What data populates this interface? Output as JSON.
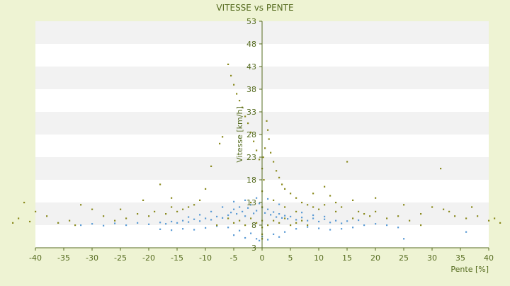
{
  "chart_data": {
    "type": "scatter",
    "title": "VITESSE vs PENTE",
    "xlabel": "Pente [%]",
    "ylabel": "Vitesse [km/h]",
    "xlim": [
      -40,
      40
    ],
    "ylim": [
      3,
      53
    ],
    "x_ticks": [
      -40,
      -35,
      -30,
      -25,
      -20,
      -15,
      -10,
      -5,
      0,
      5,
      10,
      15,
      20,
      25,
      30,
      35,
      40
    ],
    "x_tick_labels": [
      "-40",
      "-35",
      "-30",
      "-25",
      "-20",
      "-15",
      "-10",
      "-5",
      "0",
      "5",
      "10",
      "15",
      "20",
      "25",
      "30",
      "35",
      "40"
    ],
    "y_ticks": [
      3,
      8,
      13,
      18,
      23,
      28,
      33,
      38,
      43,
      48,
      53
    ],
    "y_tick_labels": [
      "3",
      "8",
      "13",
      "18",
      "23",
      "28",
      "33",
      "38",
      "43",
      "48",
      "53"
    ],
    "grid": "horizontal alternating bands",
    "legend": "none",
    "colors": {
      "background": "#eef3d3",
      "band_light": "#ffffff",
      "band_shade": "#f2f2f2",
      "axis": "#556b1f",
      "text": "#556b1f",
      "series_a": "#5b9bd5",
      "series_b": "#8a8a1e"
    },
    "series": [
      {
        "color": "#5b9bd5",
        "points": [
          [
            -6,
            10.2
          ],
          [
            -5.5,
            10.8
          ],
          [
            -5,
            11.5
          ],
          [
            -4.5,
            10.5
          ],
          [
            -4,
            12.0
          ],
          [
            -3.5,
            11.0
          ],
          [
            -3,
            10.0
          ],
          [
            -2.5,
            11.8
          ],
          [
            -2,
            12.5
          ],
          [
            -1.5,
            10.6
          ],
          [
            -1,
            11.2
          ],
          [
            -0.5,
            12.8
          ],
          [
            0,
            11.9
          ],
          [
            0.5,
            10.7
          ],
          [
            1,
            11.5
          ],
          [
            1.5,
            10.3
          ],
          [
            2,
            10.9
          ],
          [
            2.5,
            9.8
          ],
          [
            3,
            10.5
          ],
          [
            3.5,
            9.6
          ],
          [
            4,
            10.1
          ],
          [
            4.5,
            9.4
          ],
          [
            5,
            9.9
          ],
          [
            6,
            9.2
          ],
          [
            7,
            9.7
          ],
          [
            8,
            9.0
          ],
          [
            9,
            9.5
          ],
          [
            10,
            8.8
          ],
          [
            11,
            9.3
          ],
          [
            12,
            8.6
          ],
          [
            13,
            9.0
          ],
          [
            14,
            8.4
          ],
          [
            -7,
            9.6
          ],
          [
            -8,
            9.9
          ],
          [
            -9,
            9.2
          ],
          [
            -10,
            9.5
          ],
          [
            -11,
            8.9
          ],
          [
            -12,
            9.3
          ],
          [
            -13,
            8.7
          ],
          [
            -14,
            9.0
          ],
          [
            -15,
            8.5
          ],
          [
            -16,
            8.8
          ],
          [
            -17,
            8.3
          ],
          [
            -18,
            8.6
          ],
          [
            -20,
            8.2
          ],
          [
            -22,
            8.5
          ],
          [
            -24,
            8.0
          ],
          [
            -26,
            8.4
          ],
          [
            -28,
            7.9
          ],
          [
            -30,
            8.3
          ],
          [
            -32,
            8.0
          ],
          [
            -6,
            7.5
          ],
          [
            -4,
            6.8
          ],
          [
            -2,
            6.2
          ],
          [
            0,
            5.5
          ],
          [
            2,
            6.0
          ],
          [
            4,
            6.5
          ],
          [
            6,
            7.2
          ],
          [
            8,
            7.6
          ],
          [
            -8,
            7.8
          ],
          [
            -10,
            7.4
          ],
          [
            -12,
            7.0
          ],
          [
            -14,
            7.2
          ],
          [
            -16,
            6.9
          ],
          [
            -18,
            7.1
          ],
          [
            10,
            7.3
          ],
          [
            12,
            7.0
          ],
          [
            14,
            7.2
          ],
          [
            16,
            7.5
          ],
          [
            18,
            8.0
          ],
          [
            20,
            8.3
          ],
          [
            22,
            8.0
          ],
          [
            24,
            7.5
          ],
          [
            25,
            5.0
          ],
          [
            -1,
            5.0
          ],
          [
            -0.5,
            4.6
          ],
          [
            1,
            4.8
          ],
          [
            -3,
            5.2
          ],
          [
            3,
            5.4
          ],
          [
            -5,
            5.8
          ],
          [
            36,
            6.5
          ],
          [
            -36,
            8.5
          ],
          [
            -5,
            13.2
          ],
          [
            -3,
            13.5
          ],
          [
            -1,
            14.0
          ],
          [
            1,
            13.8
          ],
          [
            3,
            12.6
          ],
          [
            -7,
            12.0
          ],
          [
            -9,
            11.0
          ],
          [
            7,
            10.8
          ],
          [
            9,
            10.2
          ],
          [
            11,
            9.9
          ],
          [
            -11,
            10.3
          ],
          [
            -13,
            9.8
          ],
          [
            15,
            8.9
          ],
          [
            17,
            9.1
          ]
        ]
      },
      {
        "color": "#8a8a1e",
        "points": [
          [
            -6,
            43.5
          ],
          [
            -5.5,
            41.0
          ],
          [
            -5,
            39.0
          ],
          [
            -4.5,
            37.0
          ],
          [
            -4,
            35.5
          ],
          [
            -3.5,
            34.0
          ],
          [
            -3,
            32.0
          ],
          [
            -2.5,
            30.5
          ],
          [
            -2,
            28.5
          ],
          [
            -1.5,
            26.5
          ],
          [
            -1,
            24.5
          ],
          [
            -0.5,
            22.5
          ],
          [
            0,
            20.5
          ],
          [
            0.3,
            18.0
          ],
          [
            0.5,
            25.0
          ],
          [
            0.8,
            31.0
          ],
          [
            1,
            29.0
          ],
          [
            1.2,
            27.0
          ],
          [
            1.5,
            24.0
          ],
          [
            2,
            22.0
          ],
          [
            2.5,
            20.0
          ],
          [
            3,
            18.5
          ],
          [
            3.5,
            17.0
          ],
          [
            4,
            16.0
          ],
          [
            5,
            15.0
          ],
          [
            6,
            14.0
          ],
          [
            7,
            13.0
          ],
          [
            8,
            12.5
          ],
          [
            9,
            12.0
          ],
          [
            10,
            11.5
          ],
          [
            11,
            16.5
          ],
          [
            12,
            14.5
          ],
          [
            13,
            13.0
          ],
          [
            14,
            12.0
          ],
          [
            15,
            22.0
          ],
          [
            16,
            13.5
          ],
          [
            17,
            11.0
          ],
          [
            18,
            10.5
          ],
          [
            19,
            10.0
          ],
          [
            20,
            11.0
          ],
          [
            22,
            9.5
          ],
          [
            24,
            10.0
          ],
          [
            26,
            9.0
          ],
          [
            28,
            10.5
          ],
          [
            30,
            12.0
          ],
          [
            31.5,
            20.5
          ],
          [
            32,
            11.5
          ],
          [
            34,
            10.0
          ],
          [
            36,
            9.5
          ],
          [
            38,
            10.0
          ],
          [
            40,
            9.0
          ],
          [
            42,
            8.5
          ],
          [
            -7,
            27.5
          ],
          [
            -7.5,
            26.0
          ],
          [
            -9,
            21.0
          ],
          [
            -10,
            16.0
          ],
          [
            -11,
            13.5
          ],
          [
            -12,
            12.5
          ],
          [
            -13,
            12.0
          ],
          [
            -14,
            11.5
          ],
          [
            -15,
            11.0
          ],
          [
            -16,
            12.0
          ],
          [
            -17,
            10.5
          ],
          [
            -18,
            17.0
          ],
          [
            -19,
            11.0
          ],
          [
            -20,
            10.0
          ],
          [
            -22,
            10.5
          ],
          [
            -24,
            9.5
          ],
          [
            -26,
            9.0
          ],
          [
            -28,
            10.0
          ],
          [
            -30,
            11.5
          ],
          [
            -32,
            12.5
          ],
          [
            -34,
            9.0
          ],
          [
            -36,
            8.5
          ],
          [
            -38,
            10.0
          ],
          [
            -40,
            11.0
          ],
          [
            -41,
            8.8
          ],
          [
            -42,
            13.0
          ],
          [
            -43,
            9.5
          ],
          [
            -44,
            8.5
          ],
          [
            -2,
            9.5
          ],
          [
            -1,
            8.5
          ],
          [
            0,
            7.5
          ],
          [
            1,
            8.0
          ],
          [
            2,
            9.0
          ],
          [
            3,
            8.5
          ],
          [
            4,
            9.5
          ],
          [
            5,
            8.0
          ],
          [
            6,
            8.5
          ],
          [
            7,
            9.0
          ],
          [
            8,
            8.0
          ],
          [
            -3,
            8.0
          ],
          [
            -4,
            9.0
          ],
          [
            -5,
            8.5
          ],
          [
            -6,
            9.5
          ],
          [
            -8,
            8.0
          ],
          [
            0,
            6.0
          ],
          [
            0,
            5.0
          ],
          [
            0,
            9.0
          ],
          [
            0,
            12.0
          ],
          [
            0,
            15.5
          ],
          [
            0.2,
            23.0
          ],
          [
            2,
            13.5
          ],
          [
            -2,
            13.0
          ],
          [
            4,
            12.0
          ],
          [
            6,
            11.0
          ],
          [
            9,
            15.0
          ],
          [
            11,
            12.5
          ],
          [
            13,
            11.0
          ],
          [
            16,
            9.5
          ],
          [
            20,
            14.0
          ],
          [
            25,
            12.5
          ],
          [
            28,
            8.0
          ],
          [
            33,
            11.0
          ],
          [
            37,
            12.0
          ],
          [
            41,
            9.5
          ],
          [
            -25,
            11.5
          ],
          [
            -21,
            13.5
          ],
          [
            -16,
            14.0
          ],
          [
            -33,
            8.0
          ]
        ]
      }
    ]
  }
}
